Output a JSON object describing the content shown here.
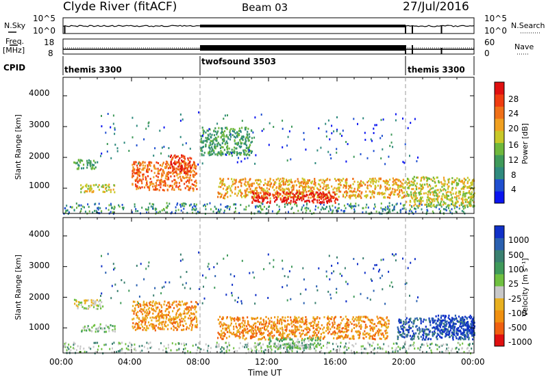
{
  "header": {
    "station": "Clyde River (fitACF)",
    "beam": "Beam 03",
    "date": "27/Jul/2016"
  },
  "top_panels": {
    "nsky_label": "N.Sky",
    "nsky_ticks": [
      "10^5",
      "10^0"
    ],
    "nsearch_label": "N.Search",
    "nsearch_ticks": [
      "10^5",
      "10^0"
    ],
    "freq_label_line1": "Freq.",
    "freq_label_line2": "[MHz]",
    "freq_ticks": [
      "18",
      "8"
    ],
    "nave_label": "Nave",
    "nave_ticks": [
      "60",
      "0"
    ],
    "cpid_label": "CPID"
  },
  "modes": [
    {
      "name": "themis 3300",
      "start_hour": 0,
      "end_hour": 8
    },
    {
      "name": "twofsound 3503",
      "start_hour": 8,
      "end_hour": 20
    },
    {
      "name": "themis 3300",
      "start_hour": 20,
      "end_hour": 24
    }
  ],
  "x_axis": {
    "title": "Time UT",
    "ticks": [
      "00:00",
      "04:00",
      "08:00",
      "12:00",
      "16:00",
      "20:00",
      "00:00"
    ]
  },
  "power_panel": {
    "ylabel": "Slant Range [km]",
    "yticks": [
      "4000",
      "3000",
      "2000",
      "1000"
    ],
    "colorbar_label": "Power [dB]",
    "colorbar_ticks": [
      "28",
      "24",
      "20",
      "16",
      "12",
      "8",
      "4"
    ],
    "colors": [
      "#0a14f0",
      "#1f4fd0",
      "#2f8a7e",
      "#3f9a5a",
      "#6fb83c",
      "#c8c828",
      "#f0a020",
      "#f07018",
      "#f03c10",
      "#e01010"
    ]
  },
  "velocity_panel": {
    "ylabel": "Slant Range [km]",
    "yticks": [
      "4000",
      "3000",
      "2000",
      "1000"
    ],
    "colorbar_label": "Velocity [m s⁻¹]",
    "colorbar_ticks": [
      "1000",
      "500",
      "100",
      "25",
      "-25",
      "-100",
      "-500",
      "-1000"
    ],
    "colors": [
      "#1030c8",
      "#2a60b0",
      "#3a8070",
      "#3f9a5a",
      "#6fc040",
      "#c8c8c8",
      "#e8b020",
      "#f09010",
      "#f06010",
      "#e01010"
    ]
  },
  "chart_data": {
    "type": "heatmap",
    "x_range_hours": [
      0,
      24
    ],
    "y_range_km": [
      180,
      4600
    ],
    "power_regions": [
      {
        "t0": 0.6,
        "t1": 2.0,
        "r0": 1650,
        "r1": 1950,
        "level": 3
      },
      {
        "t0": 1.0,
        "t1": 3.0,
        "r0": 900,
        "r1": 1150,
        "level": 5
      },
      {
        "t0": 4.0,
        "t1": 7.8,
        "r0": 950,
        "r1": 1900,
        "level": 7
      },
      {
        "t0": 6.2,
        "t1": 7.5,
        "r0": 1500,
        "r1": 2100,
        "level": 8
      },
      {
        "t0": 8.0,
        "t1": 11.0,
        "r0": 2100,
        "r1": 3000,
        "level": 3
      },
      {
        "t0": 9.0,
        "t1": 20.0,
        "r0": 700,
        "r1": 1350,
        "level": 6
      },
      {
        "t0": 11.0,
        "t1": 16.0,
        "r0": 550,
        "r1": 900,
        "level": 9
      },
      {
        "t0": 20.0,
        "t1": 24.0,
        "r0": 450,
        "r1": 1400,
        "level": 5
      }
    ],
    "velocity_regions": [
      {
        "t0": 0.6,
        "t1": 2.3,
        "r0": 1650,
        "r1": 1950,
        "level": 5
      },
      {
        "t0": 1.0,
        "t1": 3.0,
        "r0": 900,
        "r1": 1150,
        "level": 4
      },
      {
        "t0": 4.0,
        "t1": 7.8,
        "r0": 950,
        "r1": 1900,
        "level": 7
      },
      {
        "t0": 9.0,
        "t1": 19.0,
        "r0": 650,
        "r1": 1400,
        "level": 7
      },
      {
        "t0": 12.0,
        "t1": 15.0,
        "r0": 350,
        "r1": 700,
        "level": 4
      },
      {
        "t0": 19.5,
        "t1": 24.0,
        "r0": 650,
        "r1": 1350,
        "level": 1
      },
      {
        "t0": 21.5,
        "t1": 24.0,
        "r0": 800,
        "r1": 1450,
        "level": 0
      }
    ]
  }
}
